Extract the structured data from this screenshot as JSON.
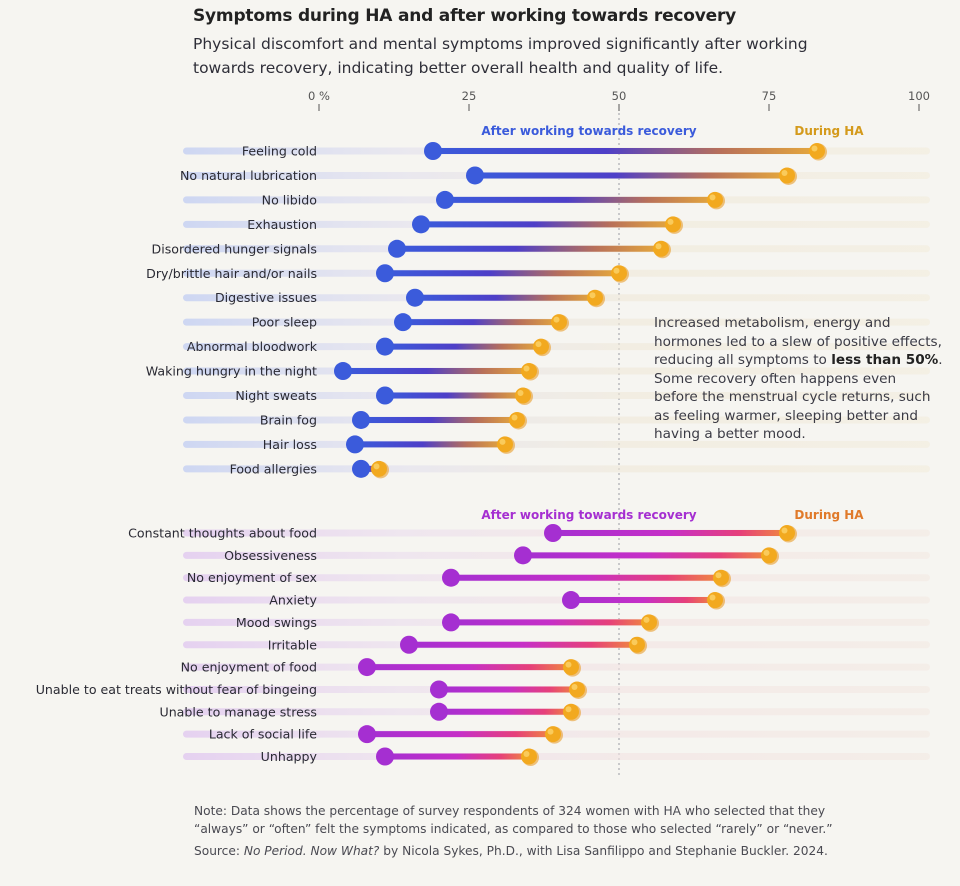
{
  "title": "Symptoms during HA and after working towards recovery",
  "subtitle": "Physical discomfort and mental symptoms improved significantly after working towards recovery, indicating better overall health and quality of life.",
  "annotation": {
    "pre": "Increased metabolism, energy and hormones led to a slew of positive effects, reducing all symptoms to ",
    "bold": "less than 50%",
    "post": ". Some recovery often happens even before the menstrual cycle returns, such as feeling warmer, sleeping better and having a better mood."
  },
  "note": "Note: Data shows the percentage of survey respondents of 324 women with HA who selected that they “always” or “often” felt the symptoms indicated, as compared to those who selected “rarely” or “never.”",
  "source": {
    "prefix": "Source: ",
    "book": "No Period. Now What?",
    "rest": " by Nicola Sykes, Ph.D., with Lisa Sanfilippo and Stephanie Buckler. 2024."
  },
  "colors": {
    "physical_after": "#3b5bdb",
    "mental_after": "#a52fd1",
    "during": "#f2a91f",
    "physical_during_label": "#d49a1c",
    "mental_during_label": "#e07a2a"
  },
  "chart_data": {
    "type": "dumbbell",
    "axis": {
      "min": 0,
      "max": 100,
      "ticks": [
        0,
        25,
        50,
        75,
        100
      ],
      "tick_labels": [
        "0 %",
        "25",
        "50",
        "75",
        "100"
      ],
      "reference_line": 50
    },
    "panels": [
      {
        "name": "physical",
        "after_label": "After working towards recovery",
        "during_label": "During HA",
        "categories": [
          "Feeling cold",
          "No natural lubrication",
          "No libido",
          "Exhaustion",
          "Disordered hunger signals",
          "Dry/brittle hair and/or nails",
          "Digestive issues",
          "Poor sleep",
          "Abnormal bloodwork",
          "Waking hungry in the night",
          "Night sweats",
          "Brain fog",
          "Hair loss",
          "Food allergies"
        ],
        "after": [
          19,
          26,
          21,
          17,
          13,
          11,
          16,
          14,
          11,
          4,
          11,
          7,
          6,
          7
        ],
        "during": [
          83,
          78,
          66,
          59,
          57,
          50,
          46,
          40,
          37,
          35,
          34,
          33,
          31,
          10
        ]
      },
      {
        "name": "mental",
        "after_label": "After working towards recovery",
        "during_label": "During HA",
        "categories": [
          "Constant thoughts about food",
          "Obsessiveness",
          "No enjoyment of sex",
          "Anxiety",
          "Mood swings",
          "Irritable",
          "No enjoyment of food",
          "Unable to eat treats without fear of bingeing",
          "Unable to manage stress",
          "Lack of social life",
          "Unhappy"
        ],
        "after": [
          39,
          34,
          22,
          42,
          22,
          15,
          8,
          20,
          20,
          8,
          11
        ],
        "during": [
          78,
          75,
          67,
          66,
          55,
          53,
          42,
          43,
          42,
          39,
          35
        ]
      }
    ]
  }
}
